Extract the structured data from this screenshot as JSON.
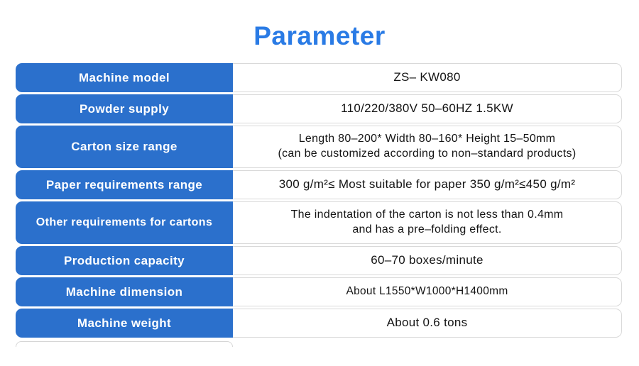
{
  "title": "Parameter",
  "colors": {
    "title_blue": "#2a7be5",
    "row_label_blue": "#2b70cc",
    "value_border_gray": "#d9d9d9",
    "value_text": "#141414"
  },
  "table": {
    "rows": [
      {
        "label": "Machine model",
        "value_lines": [
          "ZS– KW080"
        ]
      },
      {
        "label": "Powder supply",
        "value_lines": [
          "110/220/380V 50–60HZ 1.5KW"
        ]
      },
      {
        "label": "Carton size range",
        "value_lines": [
          "Length 80–200* Width 80–160* Height 15–50mm",
          "(can be customized according to non–standard products)"
        ]
      },
      {
        "label": "Paper requirements range",
        "value_lines": [
          "300 g/m²≤ Most suitable for paper 350 g/m²≤450 g/m²"
        ]
      },
      {
        "label": "Other requirements for cartons",
        "value_lines": [
          "The indentation of the carton is not less than 0.4mm",
          "and has a pre–folding effect."
        ]
      },
      {
        "label": "Production capacity",
        "value_lines": [
          "60–70 boxes/minute"
        ]
      },
      {
        "label": "Machine dimension",
        "value_lines": [
          "About L1550*W1000*H1400mm"
        ]
      },
      {
        "label": "Machine weight",
        "value_lines": [
          "About 0.6 tons"
        ]
      }
    ]
  }
}
